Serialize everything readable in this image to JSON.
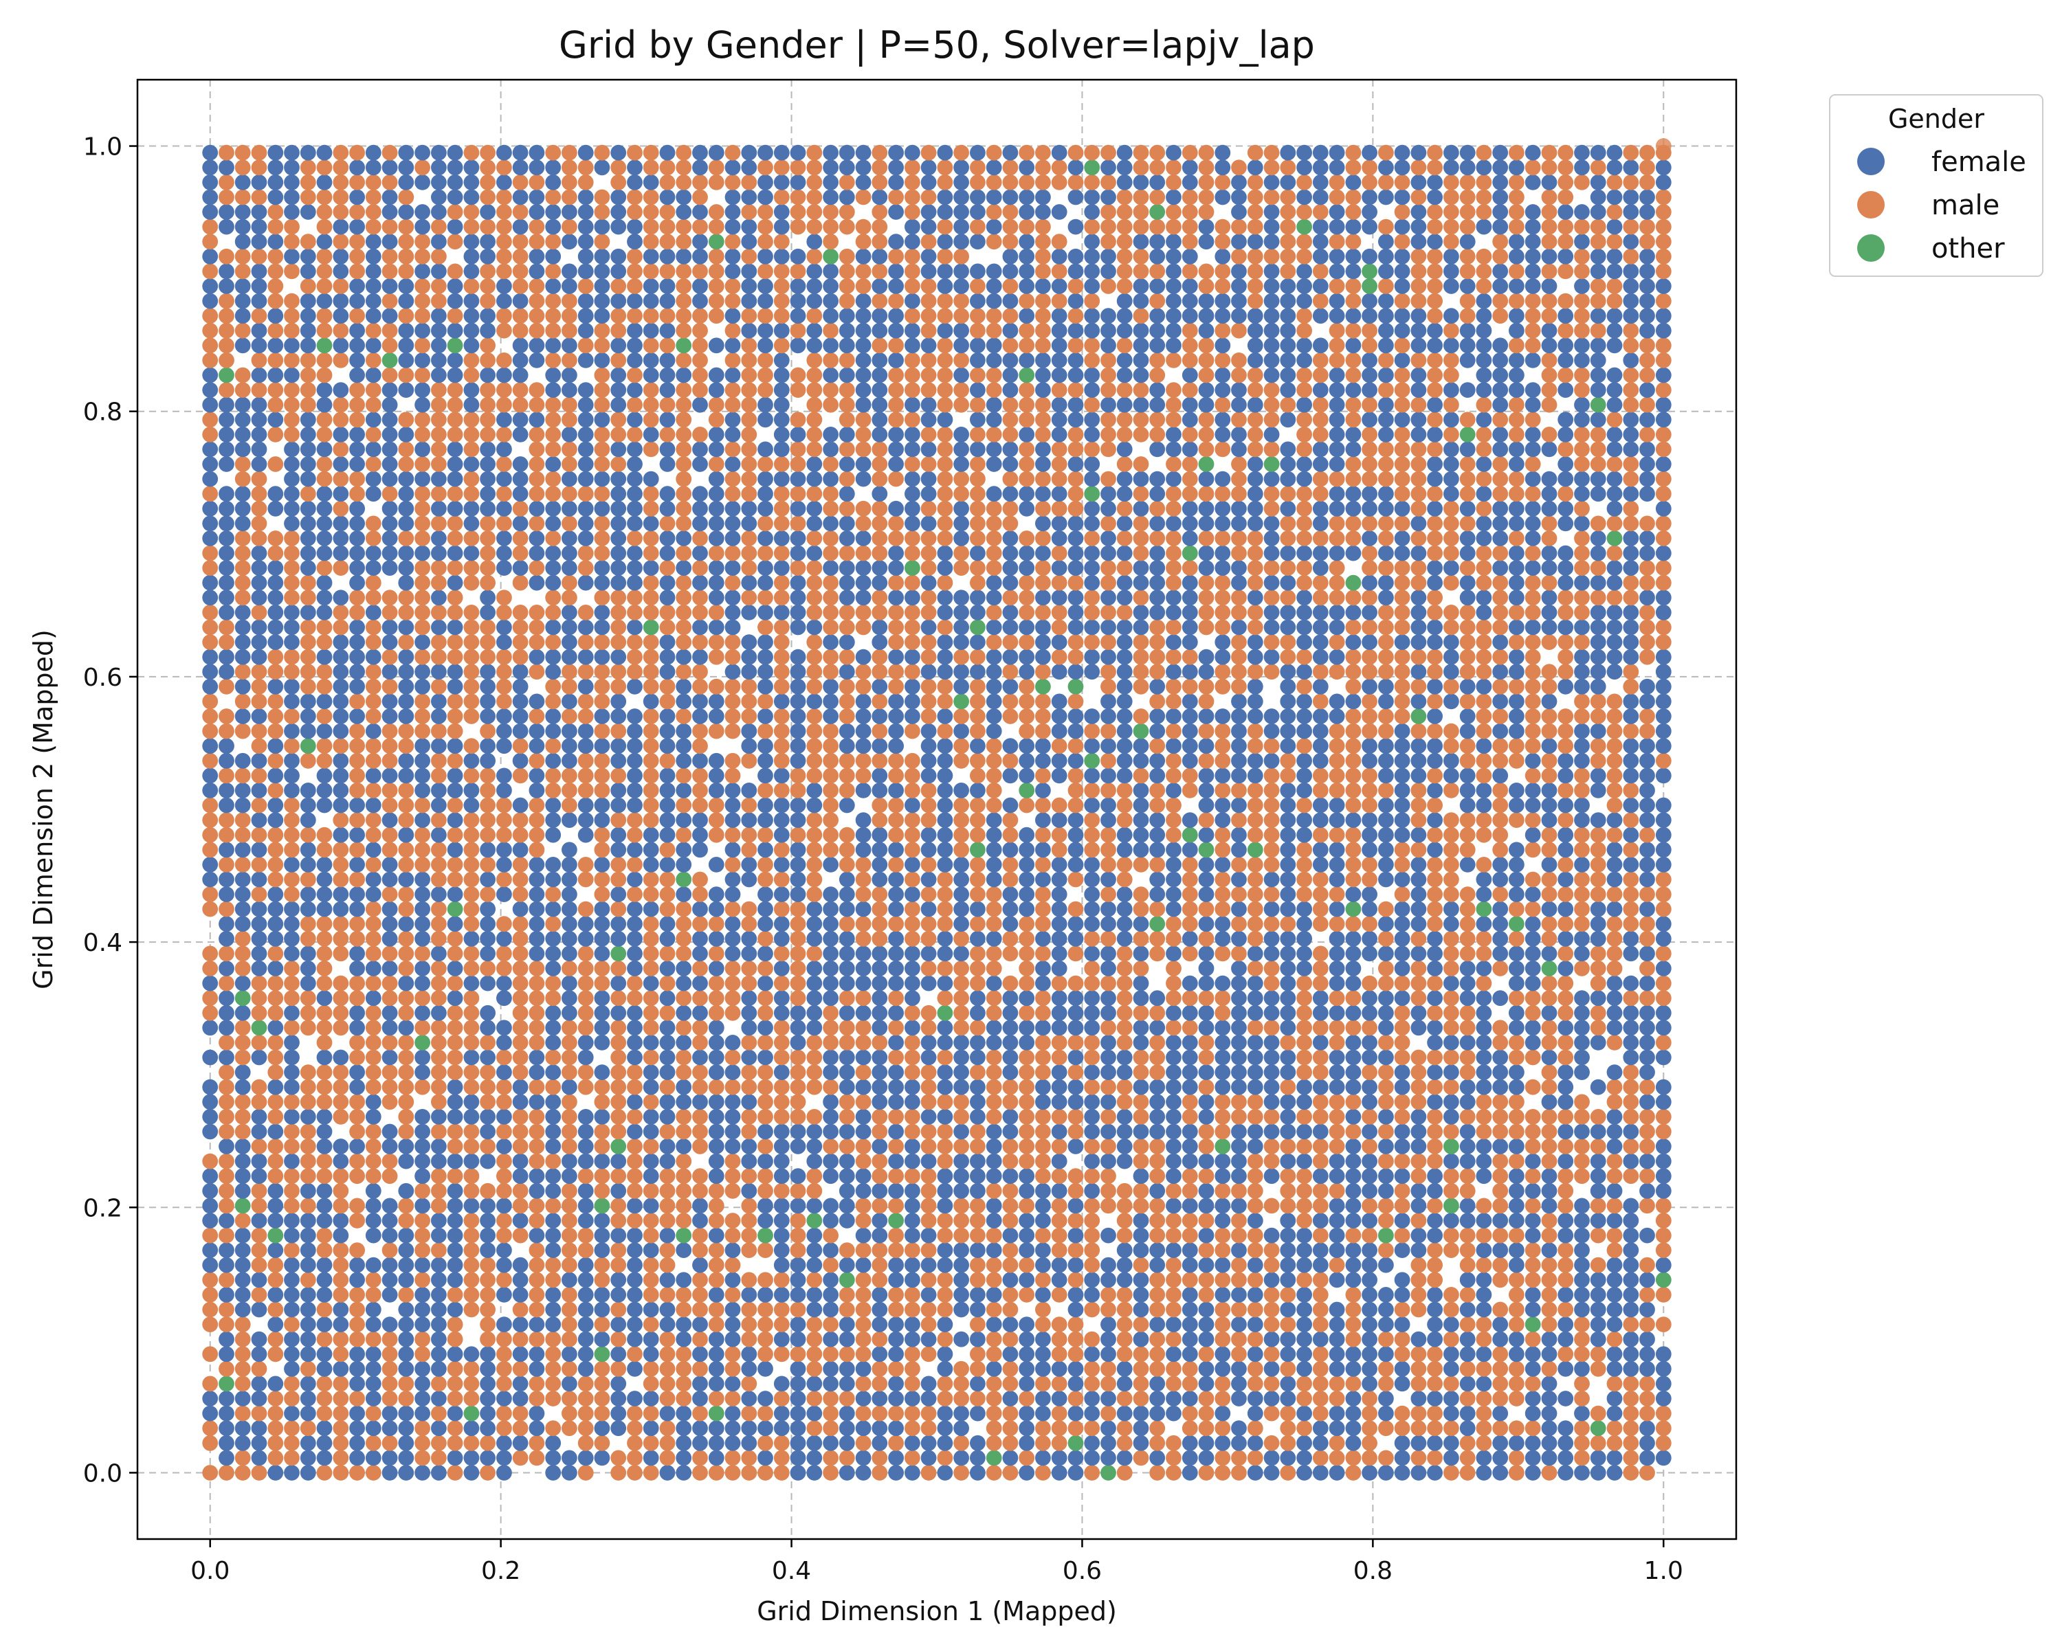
{
  "chart_data": {
    "type": "scatter",
    "title": "Grid by Gender | P=50, Solver=lapjv_lap",
    "xlabel": "Grid Dimension 1 (Mapped)",
    "ylabel": "Grid Dimension 2 (Mapped)",
    "xlim": [
      -0.05,
      1.05
    ],
    "ylim": [
      -0.05,
      1.05
    ],
    "xticks": [
      0.0,
      0.2,
      0.4,
      0.6,
      0.8,
      1.0
    ],
    "yticks": [
      0.0,
      0.2,
      0.4,
      0.6,
      0.8,
      1.0
    ],
    "xtick_labels": [
      "0.0",
      "0.2",
      "0.4",
      "0.6",
      "0.8",
      "1.0"
    ],
    "ytick_labels": [
      "0.0",
      "0.2",
      "0.4",
      "0.6",
      "0.8",
      "1.0"
    ],
    "grid": true,
    "grid_style": "dashed",
    "legend": {
      "title": "Gender",
      "placement": "outside upper right",
      "entries": [
        {
          "name": "female",
          "color": "#4c72b0"
        },
        {
          "name": "male",
          "color": "#dd8452"
        },
        {
          "name": "other",
          "color": "#55a868"
        }
      ]
    },
    "grid_layout": {
      "description_free": true,
      "cells_per_side": 90,
      "x_range": [
        0.0,
        1.0
      ],
      "y_range": [
        0.0,
        0.995
      ]
    },
    "series": [
      {
        "name": "female",
        "color": "#4c72b0",
        "approx_share": 0.48
      },
      {
        "name": "male",
        "color": "#dd8452",
        "approx_share": 0.48
      },
      {
        "name": "other",
        "color": "#55a868",
        "approx_share": 0.01
      }
    ],
    "empty_share": 0.03,
    "extra_point": {
      "x": 1.0,
      "y": 1.0,
      "category": "male"
    }
  }
}
